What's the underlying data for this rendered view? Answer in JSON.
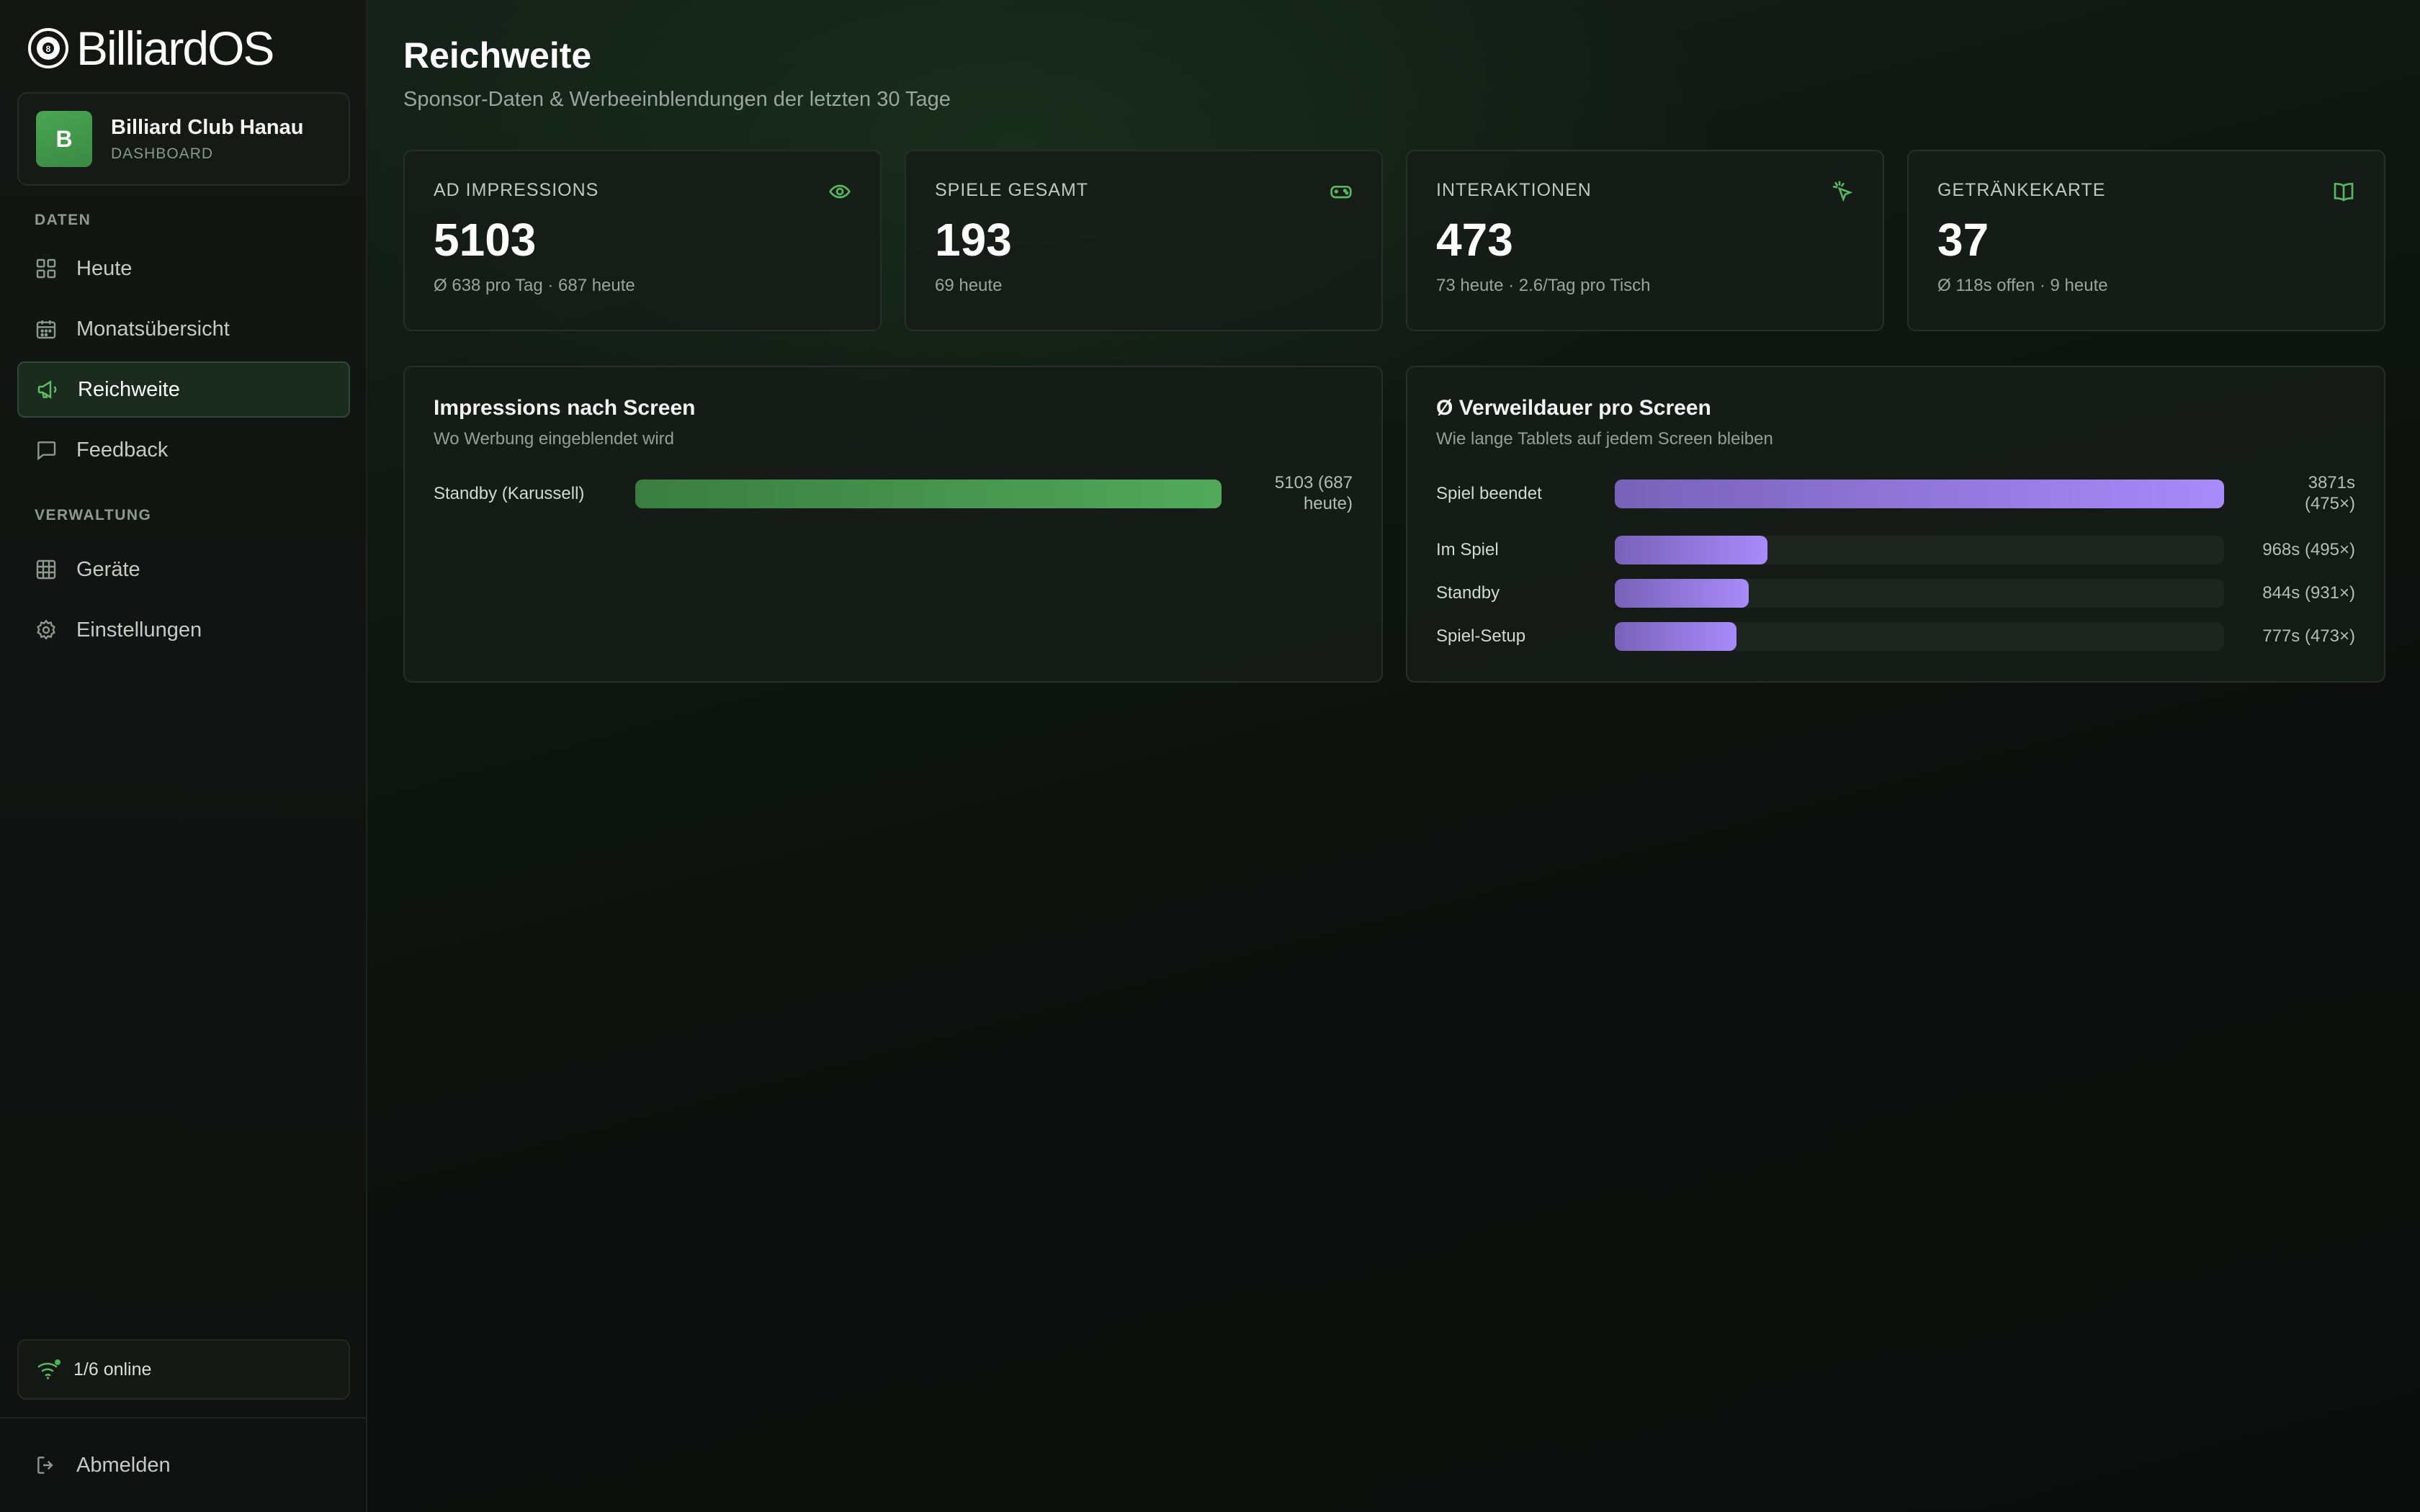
{
  "brand": {
    "name": "BilliardOS"
  },
  "club": {
    "initial": "B",
    "name": "Billiard Club Hanau",
    "role": "DASHBOARD"
  },
  "sidebar": {
    "sections": [
      {
        "label": "DATEN"
      },
      {
        "label": "VERWALTUNG"
      }
    ],
    "items": [
      {
        "label": "Heute",
        "icon": "grid-icon"
      },
      {
        "label": "Monatsübersicht",
        "icon": "calendar-icon"
      },
      {
        "label": "Reichweite",
        "icon": "megaphone-icon",
        "active": true
      },
      {
        "label": "Feedback",
        "icon": "chat-icon"
      },
      {
        "label": "Geräte",
        "icon": "table-grid-icon"
      },
      {
        "label": "Einstellungen",
        "icon": "gear-icon"
      }
    ],
    "status": "1/6 online",
    "logout": "Abmelden"
  },
  "page": {
    "title": "Reichweite",
    "subtitle": "Sponsor-Daten & Werbeeinblendungen der letzten 30 Tage"
  },
  "kpis": [
    {
      "label": "AD IMPRESSIONS",
      "value": "5103",
      "note": "Ø 638 pro Tag · 687 heute",
      "icon": "eye-icon"
    },
    {
      "label": "SPIELE GESAMT",
      "value": "193",
      "note": "69 heute",
      "icon": "gamepad-icon"
    },
    {
      "label": "INTERAKTIONEN",
      "value": "473",
      "note": "73 heute · 2.6/Tag pro Tisch",
      "icon": "pointer-click-icon"
    },
    {
      "label": "GETRÄNKEKARTE",
      "value": "37",
      "note": "Ø 118s offen · 9 heute",
      "icon": "book-icon"
    }
  ],
  "impressions_panel": {
    "title": "Impressions nach Screen",
    "subtitle": "Wo Werbung eingeblendet wird",
    "rows": [
      {
        "label": "Standby (Karussell)",
        "value_line1": "5103 (687",
        "value_line2": "heute)",
        "fraction": 1.0
      }
    ]
  },
  "dwell_panel": {
    "title": "Ø Verweildauer pro Screen",
    "subtitle": "Wie lange Tablets auf jedem Screen bleiben",
    "rows": [
      {
        "label": "Spiel beendet",
        "value_line1": "3871s",
        "value_line2": "(475×)",
        "fraction": 1.0
      },
      {
        "label": "Im Spiel",
        "value_line1": "968s (495×)",
        "value_line2": "",
        "fraction": 0.25
      },
      {
        "label": "Standby",
        "value_line1": "844s (931×)",
        "value_line2": "",
        "fraction": 0.22
      },
      {
        "label": "Spiel-Setup",
        "value_line1": "777s (473×)",
        "value_line2": "",
        "fraction": 0.2
      }
    ]
  }
}
